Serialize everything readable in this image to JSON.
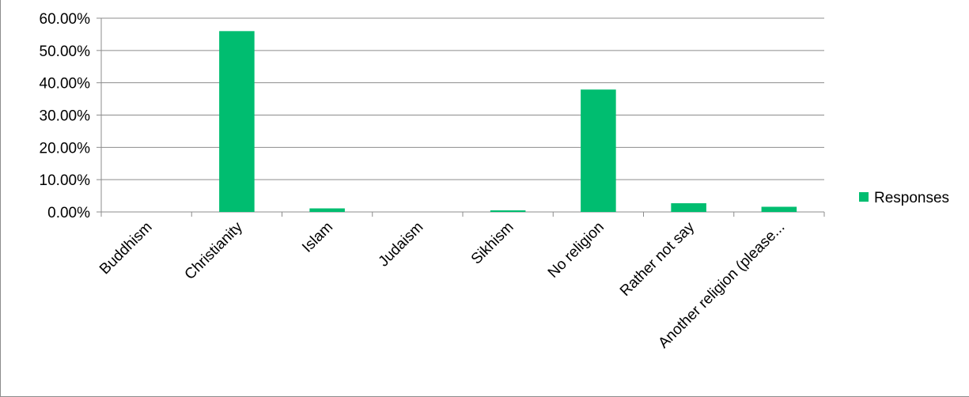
{
  "chart_data": {
    "type": "bar",
    "categories": [
      "Buddhism",
      "Christianity",
      "Islam",
      "Judaism",
      "Sikhism",
      "No religion",
      "Rather not say",
      "Another religion (please..."
    ],
    "series": [
      {
        "name": "Responses",
        "values": [
          0.0,
          56.0,
          1.1,
          0.0,
          0.5,
          37.9,
          2.7,
          1.6
        ],
        "color": "#00bd70"
      }
    ],
    "ylim": [
      0,
      60
    ],
    "yticks": [
      "0.00%",
      "10.00%",
      "20.00%",
      "30.00%",
      "40.00%",
      "50.00%",
      "60.00%"
    ],
    "ytick_values": [
      0,
      10,
      20,
      30,
      40,
      50,
      60
    ],
    "grid": true,
    "legend": {
      "position": "right",
      "label": "Responses"
    },
    "title": "",
    "xlabel": "",
    "ylabel": ""
  }
}
